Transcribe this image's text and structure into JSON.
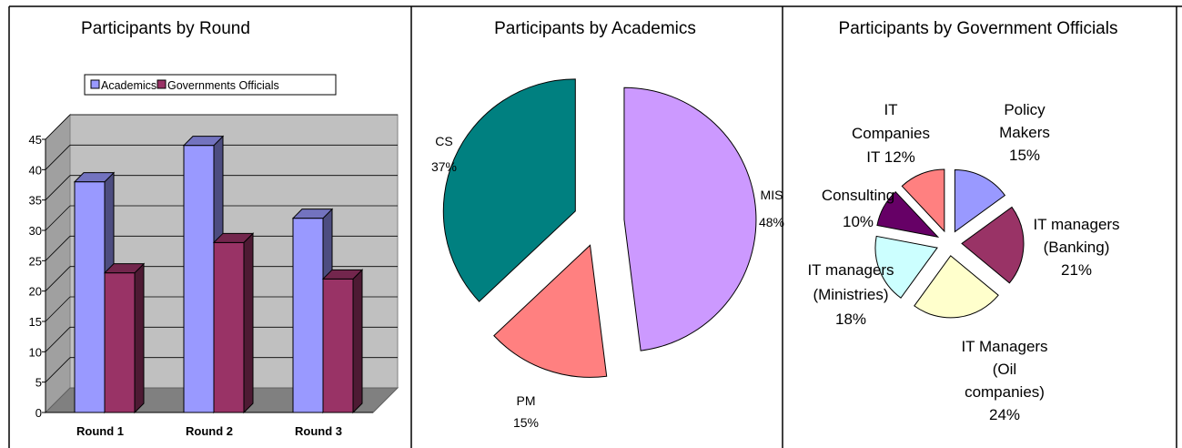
{
  "chart_data": [
    {
      "type": "bar",
      "title": "Participants by Round",
      "categories": [
        "Round 1",
        "Round 2",
        "Round 3"
      ],
      "series": [
        {
          "name": "Academics",
          "values": [
            38,
            44,
            32
          ],
          "color": "#9999ff"
        },
        {
          "name": "Governments Officials",
          "values": [
            23,
            28,
            22
          ],
          "color": "#993366"
        }
      ],
      "y_ticks": [
        "0",
        "5",
        "10",
        "15",
        "20",
        "25",
        "30",
        "35",
        "40",
        "45"
      ],
      "ylim": [
        0,
        45
      ],
      "grid": true,
      "legend": "top",
      "wall_color": "#c0c0c0",
      "floor_color": "#808080"
    },
    {
      "type": "pie",
      "title": "Participants by Academics",
      "slices": [
        {
          "label": "MIS",
          "pct_label": "48%",
          "value": 48,
          "color": "#cc99ff"
        },
        {
          "label": "PM",
          "pct_label": "15%",
          "value": 15,
          "color": "#ff8080"
        },
        {
          "label": "CS",
          "pct_label": "37%",
          "value": 37,
          "color": "#008080"
        }
      ]
    },
    {
      "type": "pie",
      "title": "Participants by Government Officials",
      "slices": [
        {
          "lines": [
            "Policy",
            "Makers",
            "15%"
          ],
          "value": 15,
          "color": "#9999ff"
        },
        {
          "lines": [
            "IT managers",
            "(Banking)",
            "21%"
          ],
          "value": 21,
          "color": "#993366"
        },
        {
          "lines": [
            "IT Managers",
            "(Oil",
            "companies)",
            "24%"
          ],
          "value": 24,
          "color": "#ffffcc"
        },
        {
          "lines": [
            "IT managers",
            "(Ministries)",
            "18%"
          ],
          "value": 18,
          "color": "#ccffff"
        },
        {
          "lines": [
            "Consulting",
            "10%"
          ],
          "value": 10,
          "color": "#660066"
        },
        {
          "lines": [
            "IT",
            "Companies",
            "IT 12%"
          ],
          "value": 12,
          "color": "#ff8080"
        }
      ]
    }
  ]
}
